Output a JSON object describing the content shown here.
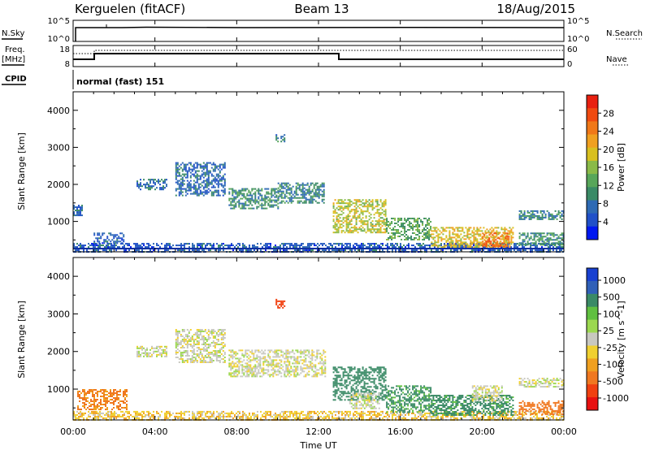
{
  "header": {
    "station": "Kerguelen (fitACF)",
    "beam": "Beam 13",
    "date": "18/Aug/2015"
  },
  "top_panels": {
    "nsky_label": "N.Sky",
    "nsky_ticks": [
      "10^5",
      "10^0"
    ],
    "nsearch_label": "N.Search",
    "nsearch_ticks": [
      "10^5",
      "10^0"
    ],
    "freq_label": "Freq.",
    "freq_unit": "[MHz]",
    "freq_ticks": [
      "18",
      "8"
    ],
    "nave_label": "Nave",
    "nave_ticks": [
      "60",
      "0"
    ],
    "cpid_label": "CPID",
    "cpid_text": "normal (fast) 151"
  },
  "colors": {
    "power_scale": [
      "#0018f0",
      "#2050c8",
      "#2e6ab4",
      "#3a8a66",
      "#58a65a",
      "#8aba48",
      "#d8c020",
      "#f0a020",
      "#f07818",
      "#f04a10",
      "#e82010"
    ],
    "velocity_scale": [
      "#1840d0",
      "#3060b8",
      "#3a8a66",
      "#60c040",
      "#9cd850",
      "#c8c8c0",
      "#f0d030",
      "#f0a020",
      "#f07820",
      "#f04010",
      "#e81010"
    ]
  },
  "chart_data": [
    {
      "type": "heatmap",
      "name": "power",
      "ylabel": "Slant Range [km]",
      "xlabel": "",
      "x_ticks": [
        "00:00",
        "04:00",
        "08:00",
        "12:00",
        "16:00",
        "20:00",
        "00:00"
      ],
      "x_range_hours": [
        0,
        24
      ],
      "y_ticks": [
        "1000",
        "2000",
        "3000",
        "4000"
      ],
      "y_range_km": [
        180,
        4500
      ],
      "colorbar_label": "Power [dB]",
      "colorbar_ticks": [
        "4",
        "8",
        "12",
        "16",
        "20",
        "24",
        "28"
      ],
      "colorbar_range": [
        0,
        32
      ],
      "regions": [
        {
          "t0": 0.0,
          "t1": 24.0,
          "r0": 200,
          "r1": 420,
          "v": 5
        },
        {
          "t0": 3.1,
          "t1": 4.6,
          "r0": 1850,
          "r1": 2150,
          "v": 7
        },
        {
          "t0": 5.0,
          "t1": 7.4,
          "r0": 1700,
          "r1": 2600,
          "v": 6
        },
        {
          "t0": 7.6,
          "t1": 10.0,
          "r0": 1350,
          "r1": 1900,
          "v": 10
        },
        {
          "t0": 10.0,
          "t1": 12.3,
          "r0": 1500,
          "r1": 2050,
          "v": 9
        },
        {
          "t0": 9.9,
          "t1": 10.3,
          "r0": 3150,
          "r1": 3400,
          "v": 8
        },
        {
          "t0": 12.7,
          "t1": 15.3,
          "r0": 700,
          "r1": 1600,
          "v": 18
        },
        {
          "t0": 15.3,
          "t1": 17.5,
          "r0": 500,
          "r1": 1100,
          "v": 12
        },
        {
          "t0": 17.5,
          "t1": 21.5,
          "r0": 300,
          "r1": 850,
          "v": 20
        },
        {
          "t0": 20.0,
          "t1": 21.3,
          "r0": 320,
          "r1": 700,
          "v": 26
        },
        {
          "t0": 21.8,
          "t1": 24.0,
          "r0": 350,
          "r1": 700,
          "v": 10
        },
        {
          "t0": 21.8,
          "t1": 24.0,
          "r0": 1050,
          "r1": 1300,
          "v": 9
        },
        {
          "t0": 0.0,
          "t1": 0.4,
          "r0": 1150,
          "r1": 1450,
          "v": 6
        },
        {
          "t0": 1.0,
          "t1": 2.5,
          "r0": 400,
          "r1": 700,
          "v": 5
        }
      ]
    },
    {
      "type": "heatmap",
      "name": "velocity",
      "ylabel": "Slant Range [km]",
      "xlabel": "Time UT",
      "x_ticks": [
        "00:00",
        "04:00",
        "08:00",
        "12:00",
        "16:00",
        "20:00",
        "00:00"
      ],
      "x_range_hours": [
        0,
        24
      ],
      "y_ticks": [
        "1000",
        "2000",
        "3000",
        "4000"
      ],
      "y_range_km": [
        180,
        4500
      ],
      "colorbar_label": "Velocity [m s^-1]",
      "colorbar_ticks": [
        "1000",
        "500",
        "100",
        "25",
        "-25",
        "-100",
        "-500",
        "-1000"
      ],
      "regions": [
        {
          "t0": 0.0,
          "t1": 24.0,
          "r0": 200,
          "r1": 420,
          "v": -50
        },
        {
          "t0": 0.2,
          "t1": 2.6,
          "r0": 450,
          "r1": 1000,
          "v": -120
        },
        {
          "t0": 3.1,
          "t1": 4.6,
          "r0": 1850,
          "r1": 2150,
          "v": 0
        },
        {
          "t0": 5.0,
          "t1": 7.4,
          "r0": 1700,
          "r1": 2600,
          "v": 0
        },
        {
          "t0": 7.6,
          "t1": 12.3,
          "r0": 1350,
          "r1": 2050,
          "v": 0
        },
        {
          "t0": 9.9,
          "t1": 10.3,
          "r0": 3150,
          "r1": 3400,
          "v": -600
        },
        {
          "t0": 12.7,
          "t1": 15.3,
          "r0": 700,
          "r1": 1600,
          "v": 150
        },
        {
          "t0": 13.5,
          "t1": 15.0,
          "r0": 500,
          "r1": 900,
          "v": 0
        },
        {
          "t0": 15.3,
          "t1": 17.5,
          "r0": 400,
          "r1": 1100,
          "v": 120
        },
        {
          "t0": 17.5,
          "t1": 21.5,
          "r0": 300,
          "r1": 850,
          "v": 130
        },
        {
          "t0": 19.5,
          "t1": 21.0,
          "r0": 700,
          "r1": 1100,
          "v": 0
        },
        {
          "t0": 21.8,
          "t1": 24.0,
          "r0": 350,
          "r1": 700,
          "v": -150
        },
        {
          "t0": 21.8,
          "t1": 24.0,
          "r0": 1050,
          "r1": 1300,
          "v": 0
        }
      ]
    }
  ]
}
